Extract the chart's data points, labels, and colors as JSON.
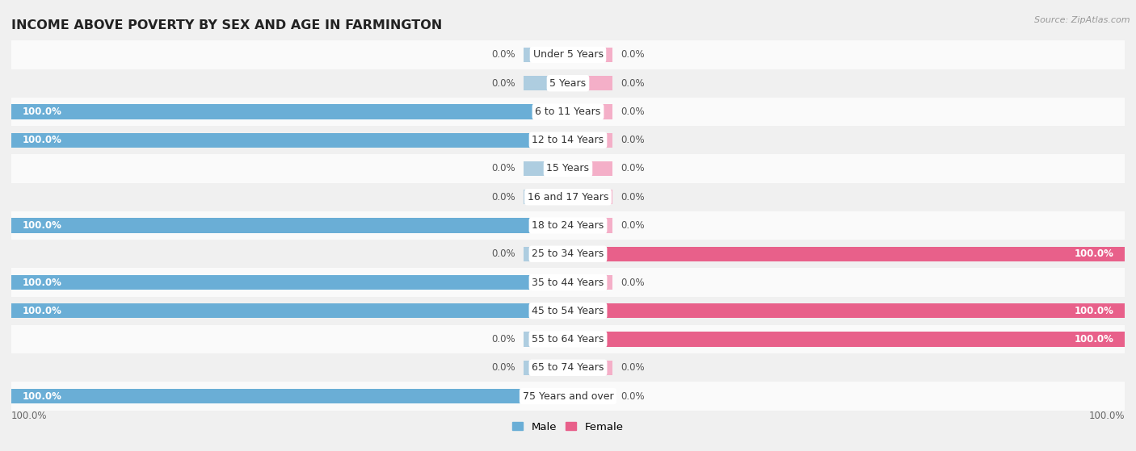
{
  "title": "INCOME ABOVE POVERTY BY SEX AND AGE IN FARMINGTON",
  "source": "Source: ZipAtlas.com",
  "categories": [
    "Under 5 Years",
    "5 Years",
    "6 to 11 Years",
    "12 to 14 Years",
    "15 Years",
    "16 and 17 Years",
    "18 to 24 Years",
    "25 to 34 Years",
    "35 to 44 Years",
    "45 to 54 Years",
    "55 to 64 Years",
    "65 to 74 Years",
    "75 Years and over"
  ],
  "male": [
    0.0,
    0.0,
    100.0,
    100.0,
    0.0,
    0.0,
    100.0,
    0.0,
    100.0,
    100.0,
    0.0,
    0.0,
    100.0
  ],
  "female": [
    0.0,
    0.0,
    0.0,
    0.0,
    0.0,
    0.0,
    0.0,
    100.0,
    0.0,
    100.0,
    100.0,
    0.0,
    0.0
  ],
  "male_color_full": "#6aaed6",
  "male_color_zero": "#aecde0",
  "female_color_full": "#e8608a",
  "female_color_zero": "#f4afc8",
  "row_color_odd": "#f0f0f0",
  "row_color_even": "#fafafa",
  "label_bg_color": "#ffffff",
  "bar_height": 0.52,
  "title_fontsize": 11.5,
  "cat_fontsize": 9,
  "val_fontsize": 8.5,
  "axis_label_fontsize": 8.5,
  "legend_fontsize": 9.5
}
